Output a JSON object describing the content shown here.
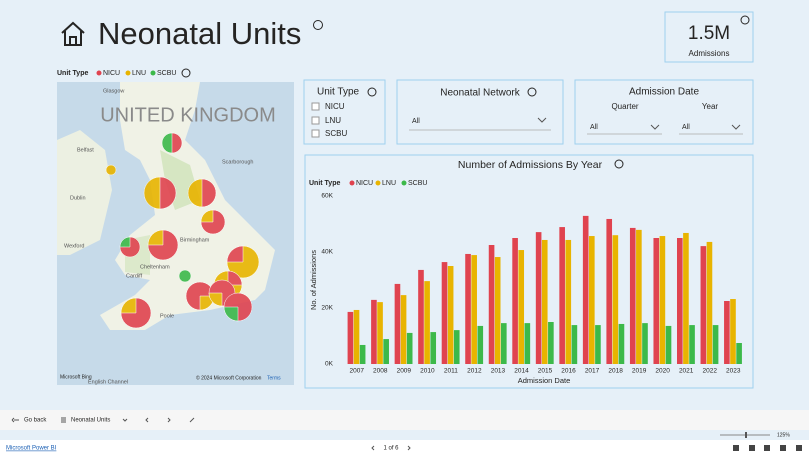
{
  "header": {
    "title": "Neonatal Units"
  },
  "kpi": {
    "value": "1.5M",
    "label": "Admissions"
  },
  "map": {
    "legend_title": "Unit Type",
    "legend": [
      "NICU",
      "LNU",
      "SCBU"
    ],
    "country_label": "UNITED KINGDOM",
    "places": [
      "Glasgow",
      "Belfast",
      "Dublin",
      "Scarborough",
      "Wexford",
      "Birmingham",
      "Cheltenham",
      "Cardiff",
      "Poole",
      "English Channel"
    ],
    "attribution": "© 2024 Microsoft Corporation",
    "terms": "Terms",
    "provider": "Microsoft Bing"
  },
  "slicers": {
    "unit_type": {
      "title": "Unit Type",
      "options": [
        "NICU",
        "LNU",
        "SCBU"
      ]
    },
    "network": {
      "title": "Neonatal Network",
      "value": "All"
    },
    "date": {
      "title": "Admission Date",
      "quarter_label": "Quarter",
      "quarter_value": "All",
      "year_label": "Year",
      "year_value": "All"
    }
  },
  "chart_data": {
    "type": "bar",
    "title": "Number of Admissions By Year",
    "legend_title": "Unit Type",
    "x_label": "Admission Date",
    "y_label": "No. of Admissions",
    "categories": [
      "2007",
      "2008",
      "2009",
      "2010",
      "2011",
      "2012",
      "2013",
      "2014",
      "2015",
      "2016",
      "2017",
      "2018",
      "2019",
      "2020",
      "2021",
      "2022",
      "2023"
    ],
    "series": [
      {
        "name": "NICU",
        "color": "#e0434f",
        "values": [
          18600,
          22900,
          28600,
          33600,
          36400,
          39300,
          42500,
          45000,
          47100,
          48900,
          52900,
          51800,
          48600,
          45000,
          45000,
          42100,
          22500
        ]
      },
      {
        "name": "LNU",
        "color": "#e8b400",
        "values": [
          19300,
          22100,
          24600,
          29600,
          35000,
          38900,
          38200,
          40700,
          44300,
          44300,
          45700,
          46000,
          47900,
          45700,
          46800,
          43600,
          23200
        ]
      },
      {
        "name": "SCBU",
        "color": "#3cb94a",
        "values": [
          6800,
          8900,
          11100,
          11400,
          12100,
          13600,
          14600,
          14600,
          15000,
          13900,
          13900,
          14300,
          14600,
          13600,
          13900,
          13900,
          7500
        ]
      }
    ],
    "ylim": [
      0,
      60000
    ],
    "yticks": [
      {
        "value": 0,
        "label": "0K"
      },
      {
        "value": 20000,
        "label": "20K"
      },
      {
        "value": 40000,
        "label": "40K"
      },
      {
        "value": 60000,
        "label": "60K"
      }
    ],
    "grid": false
  },
  "toolbar": {
    "back": "Go back",
    "page": "Neonatal Units"
  },
  "footer": {
    "brand": "Microsoft Power BI",
    "pager": "1 of 6",
    "zoom": "125%"
  }
}
